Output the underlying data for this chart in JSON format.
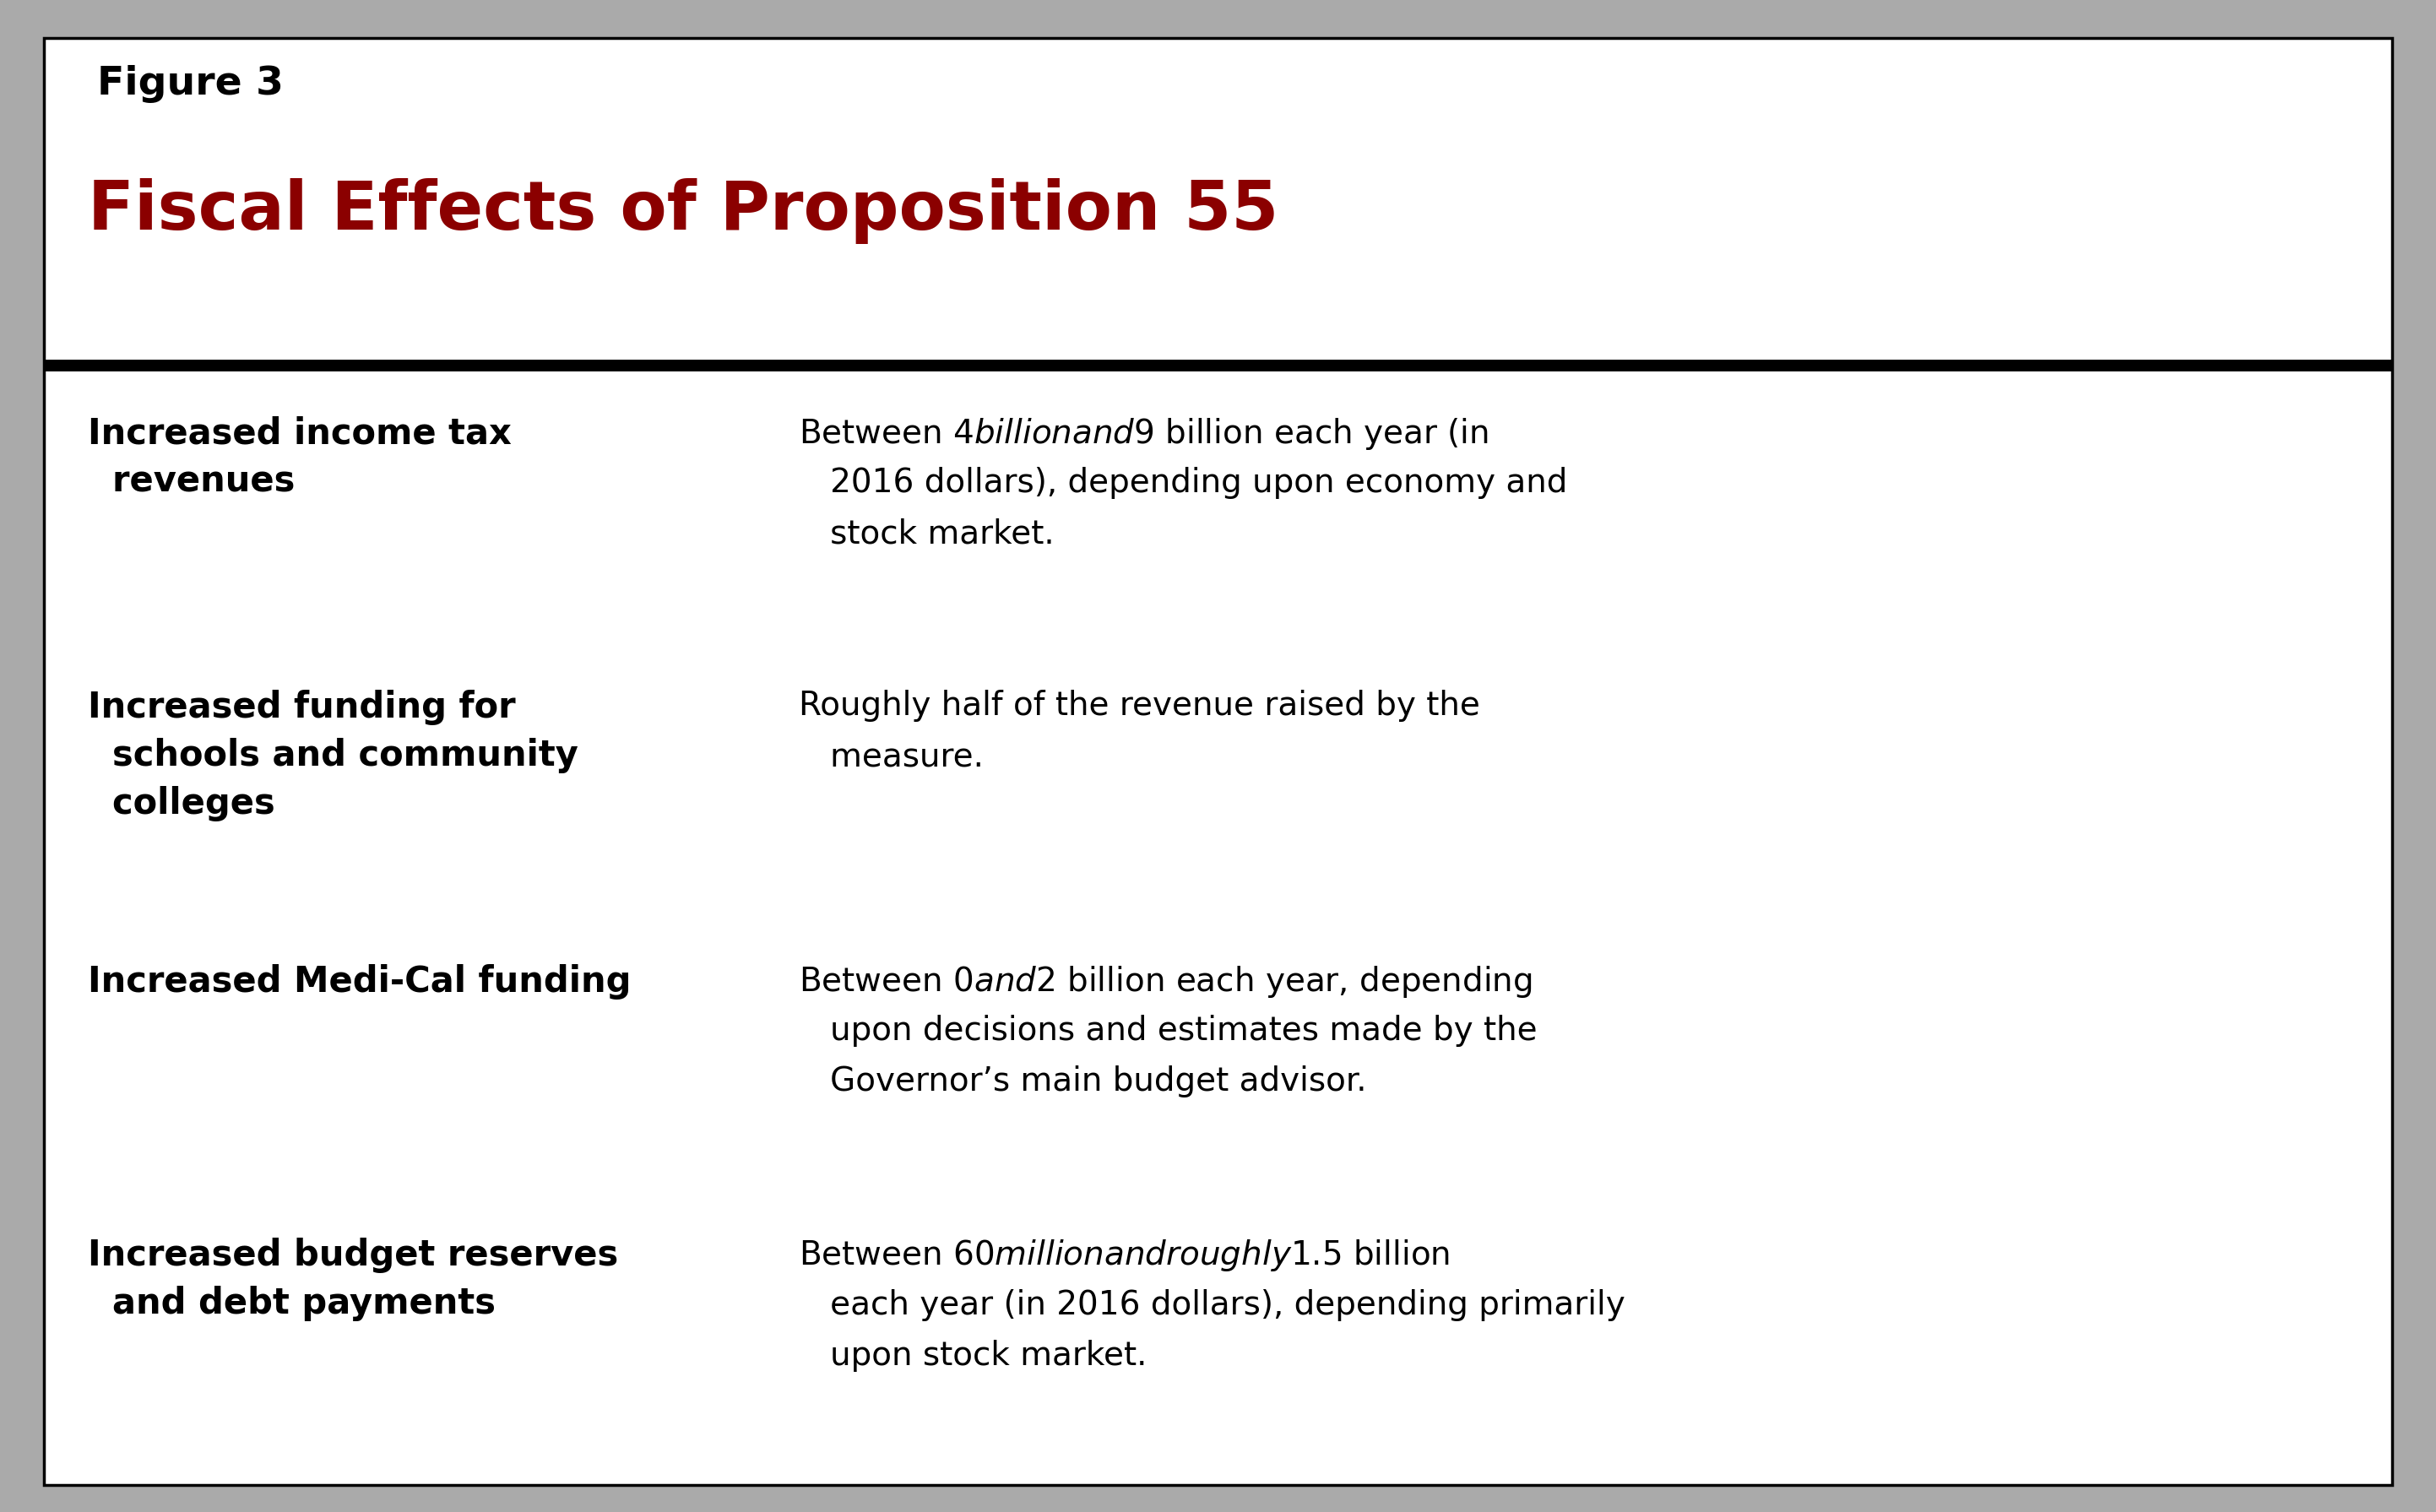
{
  "figure_label": "Figure 3",
  "title": "Fiscal Effects of Proposition 55",
  "title_color": "#8B0000",
  "label_color": "#000000",
  "background_color": "#FFFFFF",
  "border_color": "#000000",
  "thick_line_color": "#000000",
  "outer_bg": "#AAAAAA",
  "rows": [
    {
      "left_bold": "Increased income tax\n  revenues",
      "right_lines": [
        "Between $4 billion and $9 billion each year (in",
        "   2016 dollars), depending upon economy and",
        "   stock market."
      ]
    },
    {
      "left_bold": "Increased funding for\n  schools and community\n  colleges",
      "right_lines": [
        "Roughly half of the revenue raised by the",
        "   measure."
      ]
    },
    {
      "left_bold": "Increased Medi-Cal funding",
      "right_lines": [
        "Between $0 and $2 billion each year, depending",
        "   upon decisions and estimates made by the",
        "   Governor’s main budget advisor."
      ]
    },
    {
      "left_bold": "Increased budget reserves\n  and debt payments",
      "right_lines": [
        "Between $60 million and roughly $1.5 billion",
        "   each year (in 2016 dollars), depending primarily",
        "   upon stock market."
      ]
    }
  ]
}
